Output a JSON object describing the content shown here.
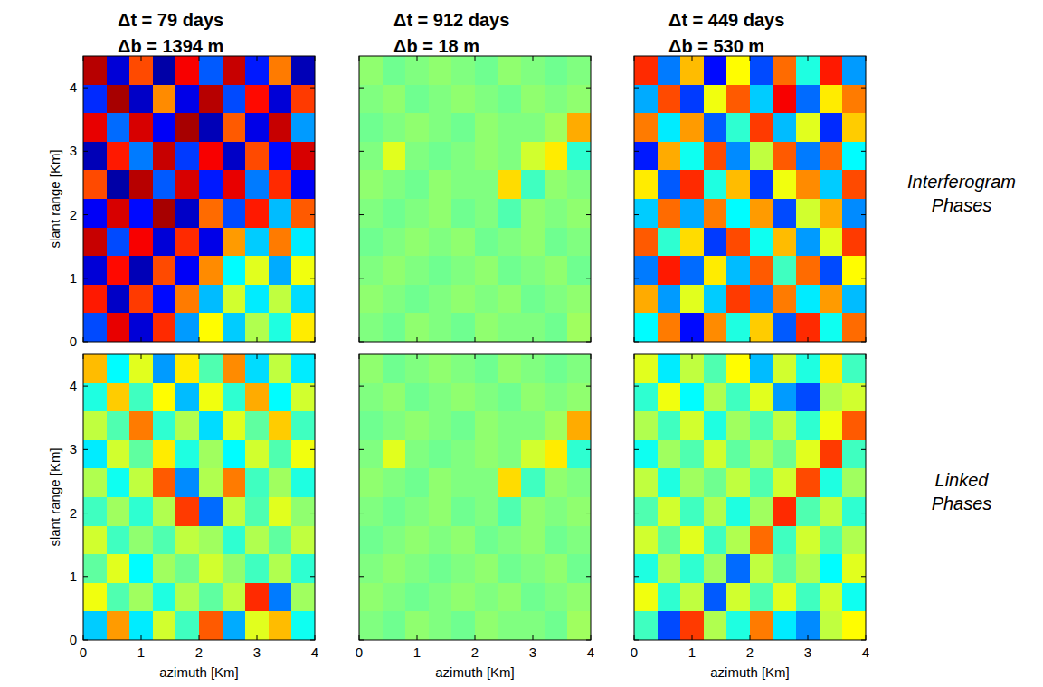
{
  "row_labels": [
    "Interferogram Phases",
    "Linked Phases"
  ],
  "chart_data": [
    {
      "type": "heatmap",
      "title": "Δt = 79 days",
      "subtitle": "Δb = 1394 m",
      "ylabel": "slant range [Km]",
      "xlim": [
        0,
        4
      ],
      "ylim": [
        0,
        4.5
      ],
      "xticks": [
        0,
        1,
        2,
        3,
        4
      ],
      "yticks": [
        0,
        1,
        2,
        3,
        4
      ],
      "tick_labels": "y",
      "zlim": [
        -3.1416,
        3.1416
      ],
      "cells": [
        [
          2.8,
          -2.6,
          1.9,
          -2.9,
          2.4,
          -1.8,
          2.7,
          -2.2,
          1.6,
          -2.8
        ],
        [
          -2.1,
          2.9,
          -2.7,
          1.5,
          -2.5,
          2.8,
          -1.9,
          2.3,
          -2.6,
          2.0
        ],
        [
          2.5,
          -1.7,
          2.6,
          -2.4,
          2.9,
          -2.8,
          1.8,
          -2.5,
          2.7,
          -1.4
        ],
        [
          -2.8,
          2.2,
          -1.6,
          2.7,
          -2.0,
          2.4,
          -2.7,
          1.9,
          -2.3,
          2.6
        ],
        [
          1.9,
          -2.9,
          2.8,
          -1.8,
          2.6,
          -2.2,
          2.5,
          -1.6,
          2.1,
          -2.4
        ],
        [
          -2.4,
          2.6,
          -2.3,
          2.9,
          -2.7,
          1.7,
          -1.9,
          2.2,
          -1.2,
          1.8
        ],
        [
          2.7,
          -1.9,
          2.4,
          -2.6,
          2.1,
          -2.5,
          1.4,
          -1.1,
          1.6,
          -0.9
        ],
        [
          -2.6,
          2.3,
          -2.8,
          1.9,
          -2.4,
          1.5,
          -0.8,
          0.6,
          -1.3,
          0.7
        ],
        [
          2.2,
          -2.7,
          2.0,
          -2.3,
          1.6,
          -1.2,
          0.5,
          -0.9,
          0.4,
          -1.0
        ],
        [
          -1.9,
          2.5,
          -2.6,
          2.1,
          -1.4,
          0.8,
          -1.1,
          0.3,
          -0.6,
          0.9
        ]
      ]
    },
    {
      "type": "heatmap",
      "title": "Δt = 912 days",
      "subtitle": "Δb = 18 m",
      "xlim": [
        0,
        4
      ],
      "ylim": [
        0,
        4.5
      ],
      "xticks": [
        0,
        1,
        2,
        3,
        4
      ],
      "yticks": [
        0,
        1,
        2,
        3,
        4
      ],
      "tick_labels": false,
      "zlim": [
        -3.1416,
        3.1416
      ],
      "cells": [
        [
          0.1,
          -0.1,
          0.0,
          0.1,
          0.0,
          -0.1,
          0.1,
          0.0,
          -0.1,
          0.0
        ],
        [
          0.0,
          0.1,
          -0.1,
          0.0,
          0.1,
          0.0,
          -0.1,
          0.1,
          0.0,
          0.1
        ],
        [
          -0.1,
          0.0,
          0.1,
          0.0,
          -0.1,
          0.1,
          0.0,
          0.0,
          0.2,
          1.3
        ],
        [
          0.0,
          0.6,
          0.0,
          -0.1,
          0.0,
          0.1,
          0.0,
          0.5,
          0.9,
          -0.5
        ],
        [
          0.1,
          0.0,
          -0.1,
          0.1,
          0.0,
          0.0,
          1.0,
          -0.4,
          0.1,
          0.0
        ],
        [
          0.0,
          -0.1,
          0.0,
          0.1,
          -0.1,
          0.0,
          -0.3,
          0.1,
          0.0,
          0.1
        ],
        [
          -0.1,
          0.0,
          0.1,
          0.0,
          0.1,
          -0.1,
          0.0,
          0.1,
          -0.1,
          0.0
        ],
        [
          0.0,
          0.1,
          0.0,
          -0.1,
          0.0,
          0.1,
          -0.1,
          0.0,
          0.1,
          -0.1
        ],
        [
          0.1,
          0.0,
          -0.1,
          0.0,
          0.1,
          0.0,
          0.1,
          -0.1,
          0.0,
          0.1
        ],
        [
          0.0,
          -0.1,
          0.1,
          0.0,
          -0.1,
          0.1,
          0.0,
          0.0,
          -0.1,
          0.2
        ]
      ]
    },
    {
      "type": "heatmap",
      "title": "Δt = 449 days",
      "subtitle": "Δb = 530 m",
      "xlim": [
        0,
        4
      ],
      "ylim": [
        0,
        4.5
      ],
      "xticks": [
        0,
        1,
        2,
        3,
        4
      ],
      "yticks": [
        0,
        1,
        2,
        3,
        4
      ],
      "tick_labels": false,
      "zlim": [
        -3.1416,
        3.1416
      ],
      "cells": [
        [
          2.1,
          -1.6,
          1.2,
          -2.3,
          0.8,
          -1.9,
          1.7,
          -0.6,
          2.2,
          -1.4
        ],
        [
          -1.3,
          1.9,
          -2.0,
          0.7,
          1.8,
          -1.1,
          2.4,
          -1.7,
          0.9,
          1.6
        ],
        [
          1.6,
          -0.9,
          1.4,
          -1.8,
          -0.5,
          2.0,
          -1.2,
          0.6,
          -2.1,
          1.1
        ],
        [
          -2.2,
          1.3,
          -0.7,
          1.9,
          -1.5,
          0.4,
          1.8,
          -1.6,
          1.7,
          -0.8
        ],
        [
          0.9,
          -1.8,
          2.1,
          -0.6,
          1.2,
          -2.0,
          0.7,
          1.5,
          -1.1,
          1.9
        ],
        [
          -1.1,
          1.7,
          -1.3,
          1.6,
          -0.8,
          1.4,
          -1.9,
          0.5,
          1.3,
          -1.5
        ],
        [
          1.8,
          -0.5,
          1.0,
          -2.0,
          1.9,
          -0.7,
          1.2,
          -1.4,
          0.6,
          2.0
        ],
        [
          -1.6,
          2.2,
          -1.7,
          0.9,
          -1.2,
          1.8,
          -0.4,
          1.7,
          -1.9,
          0.8
        ],
        [
          1.3,
          -1.4,
          0.6,
          -1.1,
          2.0,
          -1.5,
          1.6,
          -0.9,
          1.4,
          -1.2
        ],
        [
          -0.8,
          1.6,
          -2.3,
          1.5,
          -0.6,
          1.1,
          -1.8,
          2.1,
          -0.7,
          1.7
        ]
      ]
    },
    {
      "type": "heatmap",
      "xlabel": "azimuth [Km]",
      "ylabel": "slant range [Km]",
      "xlim": [
        0,
        4
      ],
      "ylim": [
        0,
        4.5
      ],
      "xticks": [
        0,
        1,
        2,
        3,
        4
      ],
      "yticks": [
        0,
        1,
        2,
        3,
        4
      ],
      "tick_labels": true,
      "zlim": [
        -3.1416,
        3.1416
      ],
      "cells": [
        [
          1.2,
          -0.8,
          0.6,
          -1.4,
          0.9,
          -0.3,
          1.5,
          -1.0,
          0.4,
          -0.9
        ],
        [
          -0.6,
          1.1,
          -0.4,
          0.8,
          -1.2,
          0.7,
          -0.5,
          1.3,
          -0.8,
          0.5
        ],
        [
          0.4,
          -0.3,
          1.6,
          -0.5,
          0.3,
          -1.0,
          0.6,
          -0.2,
          1.1,
          -0.4
        ],
        [
          -0.9,
          0.5,
          -0.2,
          0.9,
          -0.6,
          0.2,
          -0.8,
          0.5,
          -0.3,
          0.7
        ],
        [
          0.3,
          -0.7,
          0.4,
          1.8,
          -1.5,
          0.3,
          1.6,
          -0.4,
          0.2,
          -0.6
        ],
        [
          -0.4,
          0.2,
          -0.5,
          0.3,
          2.0,
          -1.7,
          0.4,
          -0.3,
          0.6,
          0.1
        ],
        [
          0.5,
          -0.4,
          0.1,
          -0.3,
          0.4,
          0.2,
          -0.5,
          0.3,
          -0.2,
          0.4
        ],
        [
          -0.2,
          0.6,
          -0.8,
          0.2,
          -0.1,
          0.5,
          0.1,
          -0.4,
          0.3,
          -0.5
        ],
        [
          0.7,
          -0.3,
          0.2,
          -0.6,
          0.3,
          -0.2,
          0.4,
          2.1,
          -1.6,
          0.2
        ],
        [
          -1.1,
          1.4,
          -0.9,
          0.5,
          -0.4,
          1.8,
          -1.3,
          0.6,
          1.2,
          -0.7
        ]
      ]
    },
    {
      "type": "heatmap",
      "xlabel": "azimuth [Km]",
      "xlim": [
        0,
        4
      ],
      "ylim": [
        0,
        4.5
      ],
      "xticks": [
        0,
        1,
        2,
        3,
        4
      ],
      "yticks": [
        0,
        1,
        2,
        3,
        4
      ],
      "tick_labels": "x",
      "zlim": [
        -3.1416,
        3.1416
      ],
      "cells": [
        [
          0.1,
          -0.1,
          0.0,
          0.1,
          0.0,
          -0.1,
          0.1,
          0.0,
          -0.1,
          0.0
        ],
        [
          0.0,
          0.1,
          -0.1,
          0.0,
          0.1,
          0.0,
          -0.1,
          0.1,
          0.0,
          0.1
        ],
        [
          -0.1,
          0.0,
          0.1,
          0.0,
          -0.1,
          0.1,
          0.0,
          0.0,
          0.2,
          1.3
        ],
        [
          0.0,
          0.6,
          0.0,
          -0.1,
          0.0,
          0.1,
          0.0,
          0.5,
          0.9,
          -0.5
        ],
        [
          0.1,
          0.0,
          -0.1,
          0.1,
          0.0,
          0.0,
          1.0,
          -0.4,
          0.1,
          0.0
        ],
        [
          0.0,
          -0.1,
          0.0,
          0.1,
          -0.1,
          0.0,
          -0.3,
          0.1,
          0.0,
          0.1
        ],
        [
          -0.1,
          0.0,
          0.1,
          0.0,
          0.1,
          -0.1,
          0.0,
          0.1,
          -0.1,
          0.0
        ],
        [
          0.0,
          0.1,
          0.0,
          -0.1,
          0.0,
          0.1,
          -0.1,
          0.0,
          0.1,
          -0.1
        ],
        [
          0.1,
          0.0,
          -0.1,
          0.0,
          0.1,
          0.0,
          0.1,
          -0.1,
          0.0,
          0.1
        ],
        [
          0.0,
          -0.1,
          0.1,
          0.0,
          -0.1,
          0.1,
          0.0,
          0.0,
          -0.1,
          0.2
        ]
      ]
    },
    {
      "type": "heatmap",
      "xlabel": "azimuth [Km]",
      "xlim": [
        0,
        4
      ],
      "ylim": [
        0,
        4.5
      ],
      "xticks": [
        0,
        1,
        2,
        3,
        4
      ],
      "yticks": [
        0,
        1,
        2,
        3,
        4
      ],
      "tick_labels": "x",
      "zlim": [
        -3.1416,
        3.1416
      ],
      "cells": [
        [
          0.6,
          -0.9,
          0.4,
          -0.3,
          0.8,
          -1.2,
          0.5,
          -0.6,
          0.9,
          -0.4
        ],
        [
          -0.5,
          0.7,
          -0.8,
          0.3,
          -0.4,
          0.6,
          -1.4,
          -1.9,
          0.3,
          0.5
        ],
        [
          0.3,
          -0.4,
          0.5,
          -0.6,
          0.2,
          -0.3,
          0.4,
          -0.5,
          0.7,
          1.8
        ],
        [
          -0.7,
          0.2,
          -0.3,
          0.5,
          -0.2,
          0.3,
          -0.1,
          0.6,
          2.0,
          -0.4
        ],
        [
          0.4,
          -0.6,
          0.2,
          -0.1,
          0.4,
          -0.3,
          0.5,
          1.9,
          -0.6,
          0.2
        ],
        [
          -0.3,
          0.5,
          -0.4,
          0.3,
          -0.6,
          0.2,
          2.1,
          -0.3,
          0.4,
          -0.5
        ],
        [
          0.5,
          -0.2,
          0.6,
          -0.4,
          0.3,
          1.7,
          -0.4,
          0.5,
          -0.3,
          0.3
        ],
        [
          -0.6,
          0.3,
          -0.5,
          0.2,
          -1.7,
          0.4,
          -0.2,
          0.3,
          -0.8,
          0.6
        ],
        [
          0.7,
          -0.5,
          0.4,
          -1.8,
          0.5,
          -0.3,
          0.6,
          -0.4,
          0.5,
          -0.7
        ],
        [
          -0.4,
          -1.9,
          2.0,
          0.3,
          -0.6,
          1.6,
          -0.9,
          -1.5,
          0.4,
          0.8
        ]
      ]
    }
  ]
}
